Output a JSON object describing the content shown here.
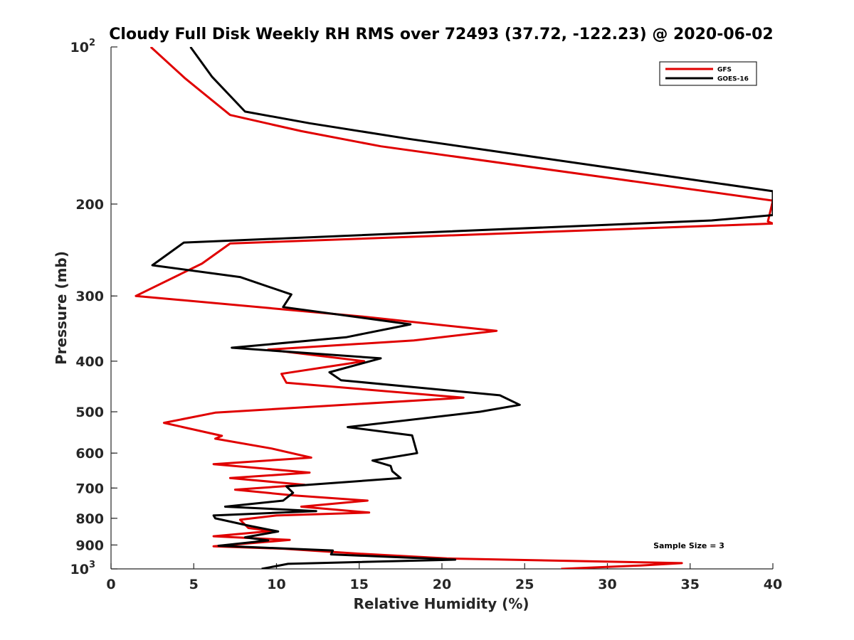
{
  "chart_data": {
    "type": "line",
    "title": "Cloudy Full Disk Weekly RH RMS over 72493 (37.72, -122.23) @ 2020-06-02",
    "xlabel": "Relative Humidity (%)",
    "ylabel": "Pressure (mb)",
    "xlim": [
      0,
      40
    ],
    "ylim": [
      100,
      1000
    ],
    "y_scale": "log",
    "y_reversed": true,
    "x_ticks": [
      "0",
      "5",
      "10",
      "15",
      "20",
      "25",
      "30",
      "35",
      "40"
    ],
    "y_ticks": [
      {
        "value": 100,
        "base": "10",
        "exp": "2"
      },
      {
        "value": 200,
        "label": "200"
      },
      {
        "value": 300,
        "label": "300"
      },
      {
        "value": 400,
        "label": "400"
      },
      {
        "value": 500,
        "label": "500"
      },
      {
        "value": 600,
        "label": "600"
      },
      {
        "value": 700,
        "label": "700"
      },
      {
        "value": 800,
        "label": "800"
      },
      {
        "value": 900,
        "label": "900"
      },
      {
        "value": 1000,
        "base": "10",
        "exp": "3"
      }
    ],
    "legend_position": "top-right",
    "annotation": "Sample Size = 3",
    "series": [
      {
        "name": "GFS",
        "color": "#e00000",
        "points": [
          [
            2.4,
            100
          ],
          [
            4.5,
            115
          ],
          [
            7.2,
            135
          ],
          [
            11.5,
            145
          ],
          [
            16.3,
            155
          ],
          [
            40,
            197
          ],
          [
            39.7,
            216
          ],
          [
            40,
            218
          ],
          [
            7.2,
            238
          ],
          [
            5.5,
            260
          ],
          [
            1.5,
            300
          ],
          [
            15,
            328
          ],
          [
            23.3,
            350
          ],
          [
            18.3,
            365
          ],
          [
            9.5,
            380
          ],
          [
            15.3,
            400
          ],
          [
            10.3,
            423
          ],
          [
            10.6,
            440
          ],
          [
            21.3,
            470
          ],
          [
            15,
            483
          ],
          [
            6.3,
            502
          ],
          [
            3.2,
            525
          ],
          [
            6.7,
            556
          ],
          [
            6.3,
            563
          ],
          [
            9.7,
            588
          ],
          [
            12.1,
            612
          ],
          [
            6.2,
            630
          ],
          [
            12,
            654
          ],
          [
            7.2,
            670
          ],
          [
            11.7,
            690
          ],
          [
            7.5,
            705
          ],
          [
            11,
            723
          ],
          [
            15.5,
            740
          ],
          [
            11.5,
            760
          ],
          [
            15.6,
            780
          ],
          [
            10,
            790
          ],
          [
            7.8,
            805
          ],
          [
            8.3,
            835
          ],
          [
            9.7,
            846
          ],
          [
            6.2,
            866
          ],
          [
            10.8,
            880
          ],
          [
            6.2,
            905
          ],
          [
            10.5,
            915
          ],
          [
            15,
            935
          ],
          [
            20.3,
            955
          ],
          [
            34.5,
            975
          ],
          [
            32,
            985
          ],
          [
            27.2,
            1000
          ]
        ]
      },
      {
        "name": "GOES-16",
        "color": "#000000",
        "points": [
          [
            4.8,
            100
          ],
          [
            6.1,
            114
          ],
          [
            8.1,
            133
          ],
          [
            12,
            140
          ],
          [
            18,
            150
          ],
          [
            40,
            189
          ],
          [
            40,
            210
          ],
          [
            36.3,
            215
          ],
          [
            4.4,
            237
          ],
          [
            2.5,
            262
          ],
          [
            7.8,
            276
          ],
          [
            10.9,
            298
          ],
          [
            10.4,
            315
          ],
          [
            18.1,
            340
          ],
          [
            14.2,
            360
          ],
          [
            7.3,
            377
          ],
          [
            16.3,
            395
          ],
          [
            13.2,
            420
          ],
          [
            13.9,
            435
          ],
          [
            23.5,
            465
          ],
          [
            24.7,
            485
          ],
          [
            22.3,
            500
          ],
          [
            14.3,
            535
          ],
          [
            18.2,
            555
          ],
          [
            18.5,
            600
          ],
          [
            15.8,
            620
          ],
          [
            16.9,
            635
          ],
          [
            17,
            650
          ],
          [
            17.5,
            670
          ],
          [
            10.6,
            695
          ],
          [
            11,
            715
          ],
          [
            10.4,
            740
          ],
          [
            6.9,
            760
          ],
          [
            12.4,
            775
          ],
          [
            6.2,
            790
          ],
          [
            6.3,
            800
          ],
          [
            8.3,
            826
          ],
          [
            10.1,
            848
          ],
          [
            8.1,
            870
          ],
          [
            9.5,
            882
          ],
          [
            6.5,
            903
          ],
          [
            13.4,
            922
          ],
          [
            13.3,
            938
          ],
          [
            20.8,
            960
          ],
          [
            10.7,
            978
          ],
          [
            9.1,
            1000
          ]
        ]
      }
    ]
  }
}
